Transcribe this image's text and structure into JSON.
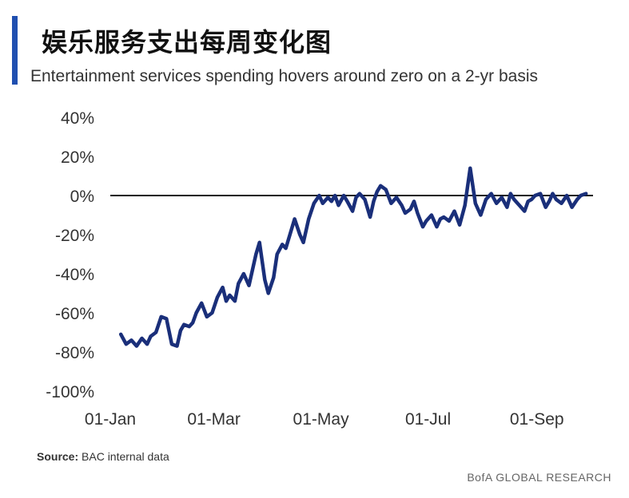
{
  "header": {
    "title": "娱乐服务支出每周变化图",
    "subtitle": "Entertainment services spending hovers around zero on a 2-yr basis"
  },
  "footer": {
    "source_label": "Source:",
    "source_text": "BAC internal data",
    "brand": "BofA GLOBAL RESEARCH"
  },
  "colors": {
    "accent": "#1f4fb0",
    "line": "#1a2f7a",
    "zero_line": "#111111"
  },
  "chart_data": {
    "type": "line",
    "title": "娱乐服务支出每周变化图",
    "subtitle": "Entertainment services spending hovers around zero on a 2-yr basis",
    "xlabel": "",
    "ylabel": "",
    "ylim": [
      -100,
      40
    ],
    "y_ticks": [
      40,
      20,
      0,
      -20,
      -40,
      -60,
      -80,
      -100
    ],
    "y_tick_labels": [
      "40%",
      "20%",
      "0%",
      "-20%",
      "-40%",
      "-60%",
      "-80%",
      "-100%"
    ],
    "x_tick_labels": [
      "01-Jan",
      "01-Mar",
      "01-May",
      "01-Jul",
      "01-Sep"
    ],
    "x_tick_days": [
      0,
      59,
      120,
      181,
      243
    ],
    "x_unit": "days since 01-Jan",
    "reference_line": 0,
    "grid": false,
    "series": [
      {
        "name": "",
        "x": [
          6,
          9,
          12,
          15,
          18,
          21,
          23,
          26,
          29,
          32,
          35,
          38,
          40,
          42,
          45,
          47,
          49,
          52,
          55,
          58,
          61,
          64,
          66,
          68,
          71,
          73,
          76,
          79,
          81,
          83,
          85,
          88,
          90,
          93,
          95,
          98,
          100,
          103,
          105,
          108,
          110,
          113,
          116,
          119,
          121,
          124,
          126,
          128,
          130,
          133,
          135,
          138,
          140,
          142,
          145,
          148,
          150,
          152,
          154,
          157,
          160,
          163,
          166,
          168,
          171,
          173,
          175,
          178,
          180,
          183,
          186,
          188,
          190,
          193,
          196,
          199,
          202,
          205,
          208,
          211,
          214,
          217,
          220,
          223,
          226,
          228,
          230,
          233,
          236,
          238,
          240,
          242,
          245,
          248,
          250,
          252,
          254,
          257,
          260,
          263,
          266,
          268,
          271
        ],
        "values": [
          -71,
          -76,
          -74,
          -77,
          -73,
          -76,
          -72,
          -70,
          -62,
          -63,
          -76,
          -77,
          -69,
          -66,
          -67,
          -65,
          -60,
          -55,
          -62,
          -60,
          -52,
          -47,
          -54,
          -51,
          -54,
          -45,
          -40,
          -46,
          -38,
          -30,
          -24,
          -43,
          -50,
          -42,
          -30,
          -25,
          -27,
          -18,
          -12,
          -20,
          -24,
          -12,
          -4,
          0,
          -4,
          -1,
          -3,
          0,
          -5,
          0,
          -3,
          -8,
          -1,
          1,
          -2,
          -11,
          -3,
          2,
          5,
          3,
          -4,
          -1,
          -5,
          -9,
          -7,
          -3,
          -9,
          -16,
          -13,
          -10,
          -16,
          -12,
          -11,
          -13,
          -8,
          -15,
          -5,
          14,
          -4,
          -10,
          -2,
          1,
          -4,
          -1,
          -6,
          1,
          -2,
          -5,
          -8,
          -3,
          -2,
          0,
          1,
          -6,
          -3,
          1,
          -2,
          -4,
          0,
          -6,
          -2,
          0,
          1
        ]
      }
    ]
  }
}
